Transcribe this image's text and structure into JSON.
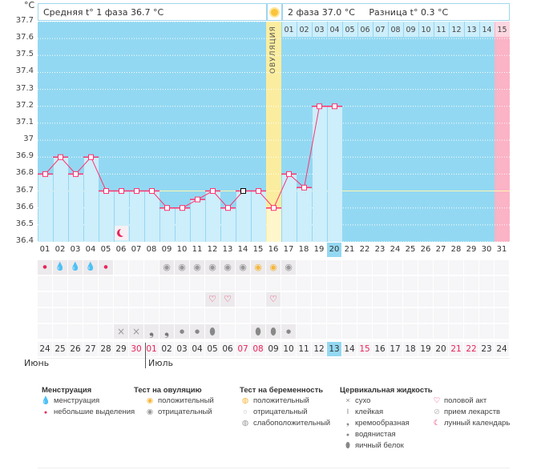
{
  "header": {
    "unit": "°C",
    "phase1": "Средняя t° 1 фаза 36.7 °C",
    "phase2": "2 фаза 37.0 °C",
    "diff": "Разница t° 0.3 °C",
    "ovulation_label": "ОВУЛЯЦИЯ"
  },
  "colors": {
    "bg": "#93d8f2",
    "bar": "#cdeefb",
    "line": "#ff3370",
    "ovulation": "#fbed9f",
    "next": "#fbb3c6",
    "red": "#e8245a"
  },
  "y_ticks": [
    "37.7",
    "37.6",
    "37.5",
    "37.4",
    "37.3",
    "37.2",
    "37.1",
    "37",
    "36.9",
    "36.8",
    "36.7",
    "36.6",
    "36.5",
    "36.4"
  ],
  "chart_data": {
    "type": "line",
    "ylim": [
      36.4,
      37.7
    ],
    "days": [
      "01",
      "02",
      "03",
      "04",
      "05",
      "06",
      "07",
      "08",
      "09",
      "10",
      "11",
      "12",
      "13",
      "14",
      "15",
      "16",
      "17",
      "18",
      "19",
      "20"
    ],
    "temps": [
      36.8,
      36.9,
      36.8,
      36.9,
      36.7,
      36.7,
      36.7,
      36.7,
      36.6,
      36.6,
      36.65,
      36.7,
      36.6,
      36.7,
      36.7,
      36.6,
      36.8,
      36.72,
      37.2,
      37.2
    ]
  },
  "cycle_days": [
    "01",
    "02",
    "03",
    "04",
    "05",
    "06",
    "07",
    "08",
    "09",
    "10",
    "11",
    "12",
    "13",
    "14",
    "15",
    "16",
    "17",
    "18",
    "19",
    "20",
    "21",
    "22",
    "23",
    "24",
    "25",
    "26",
    "27",
    "28",
    "29",
    "30",
    "31"
  ],
  "phase2_days": [
    "01",
    "02",
    "03",
    "04",
    "05",
    "06",
    "07",
    "08",
    "09",
    "10",
    "11",
    "12",
    "13",
    "14",
    "15"
  ],
  "current_day": 20,
  "dates": [
    "24",
    "25",
    "26",
    "27",
    "28",
    "29",
    "30",
    "01",
    "02",
    "03",
    "04",
    "05",
    "06",
    "07",
    "08",
    "09",
    "10",
    "11",
    "12",
    "13",
    "14",
    "15",
    "16",
    "17",
    "18",
    "19",
    "20",
    "21",
    "22",
    "23",
    "24"
  ],
  "red_dates": [
    6,
    7,
    13,
    14,
    21,
    27,
    28
  ],
  "months": [
    "Июнь",
    "Июль"
  ],
  "rows": {
    "menstruation": {
      "1": "small",
      "2": "big",
      "3": "big",
      "4": "big",
      "5": "small"
    },
    "ovulation_test": {
      "9": "neg",
      "10": "neg",
      "11": "neg",
      "12": "neg",
      "13": "neg",
      "14": "neg",
      "15": "pos",
      "16": "pos",
      "17": "neg"
    },
    "intercourse": {
      "12": "heart",
      "13": "heart",
      "16": "heart"
    },
    "cervical": {
      "6": "dry",
      "7": "dry",
      "8": "creamy",
      "9": "creamy",
      "10": "watery",
      "11": "watery",
      "12": "egg",
      "15": "egg",
      "16": "egg",
      "17": "watery"
    }
  },
  "legend": {
    "menstruation": {
      "title": "Менструация",
      "items": [
        "менструация",
        "небольшие выделения"
      ]
    },
    "ovulation": {
      "title": "Тест на овуляцию",
      "items": [
        "положительный",
        "отрицательный"
      ]
    },
    "pregnancy": {
      "title": "Тест на беременность",
      "items": [
        "положительный",
        "отрицательный",
        "слабоположительный"
      ]
    },
    "cervical": {
      "title": "Цервикальная жидкость",
      "items": [
        "сухо",
        "клейкая",
        "кремообразная",
        "водянистая",
        "яичный белок"
      ]
    },
    "other": {
      "items": [
        "половой акт",
        "прием лекарств",
        "лунный календарь"
      ]
    }
  }
}
